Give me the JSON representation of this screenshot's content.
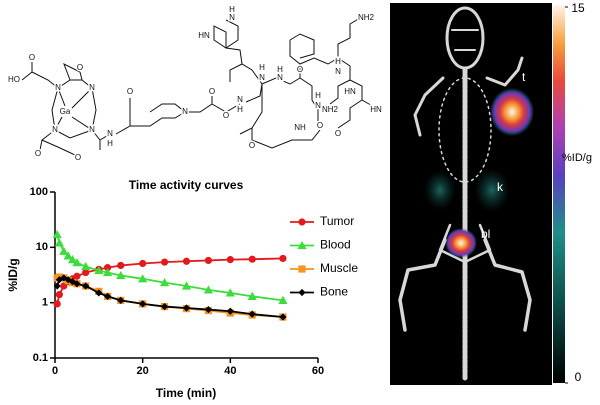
{
  "structure": {
    "atoms": [
      "HO",
      "O",
      "O",
      "N",
      "N",
      "Ga",
      "N",
      "N",
      "O",
      "O",
      "N",
      "H",
      "O",
      "N",
      "N",
      "H",
      "O",
      "N",
      "H",
      "O",
      "HN",
      "N",
      "H",
      "N",
      "H",
      "O",
      "NH",
      "HN",
      "NH2",
      "N",
      "H",
      "O",
      "HN",
      "O",
      "NH2",
      "N",
      "H",
      "O"
    ]
  },
  "chart_data": {
    "type": "line",
    "title": "Time activity curves",
    "x_label": "Time (min)",
    "y_label": "%ID/g",
    "x": [
      0.5,
      1,
      2,
      3,
      4,
      5,
      7,
      10,
      12,
      15,
      20,
      25,
      30,
      35,
      40,
      45,
      52
    ],
    "series": [
      {
        "name": "Tumor",
        "color": "#e3191c",
        "marker": "circle",
        "values": [
          0.95,
          1.4,
          2.0,
          2.4,
          2.7,
          3.0,
          3.5,
          4.0,
          4.3,
          4.7,
          5.1,
          5.4,
          5.6,
          5.8,
          6.0,
          6.1,
          6.3
        ]
      },
      {
        "name": "Blood",
        "color": "#3ddc3d",
        "marker": "triangle",
        "values": [
          17,
          12,
          8.5,
          7.0,
          6.0,
          5.3,
          4.5,
          3.8,
          3.5,
          3.1,
          2.7,
          2.3,
          2.0,
          1.7,
          1.5,
          1.3,
          1.1
        ]
      },
      {
        "name": "Muscle",
        "color": "#f7931e",
        "marker": "square",
        "values": [
          2.8,
          2.9,
          2.8,
          2.5,
          2.3,
          2.2,
          2.0,
          1.6,
          1.3,
          1.1,
          0.95,
          0.85,
          0.78,
          0.72,
          0.65,
          0.6,
          0.55
        ]
      },
      {
        "name": "Bone",
        "color": "#000000",
        "marker": "diamond",
        "values": [
          2.0,
          2.6,
          2.8,
          2.6,
          2.4,
          2.2,
          2.0,
          1.5,
          1.3,
          1.1,
          0.95,
          0.85,
          0.8,
          0.75,
          0.7,
          0.62,
          0.55
        ]
      }
    ],
    "xlim": [
      0,
      60
    ],
    "xticks": [
      0,
      20,
      40,
      60
    ],
    "ylim": [
      0.1,
      100
    ],
    "yticks": [
      0.1,
      1,
      10,
      100
    ],
    "yscale": "log",
    "legend": "right"
  },
  "image": {
    "labels": [
      "t",
      "k",
      "bl"
    ],
    "colorbar": {
      "label": "%ID/g",
      "lim": [
        0,
        15
      ],
      "ticks": [
        15,
        0
      ]
    }
  }
}
